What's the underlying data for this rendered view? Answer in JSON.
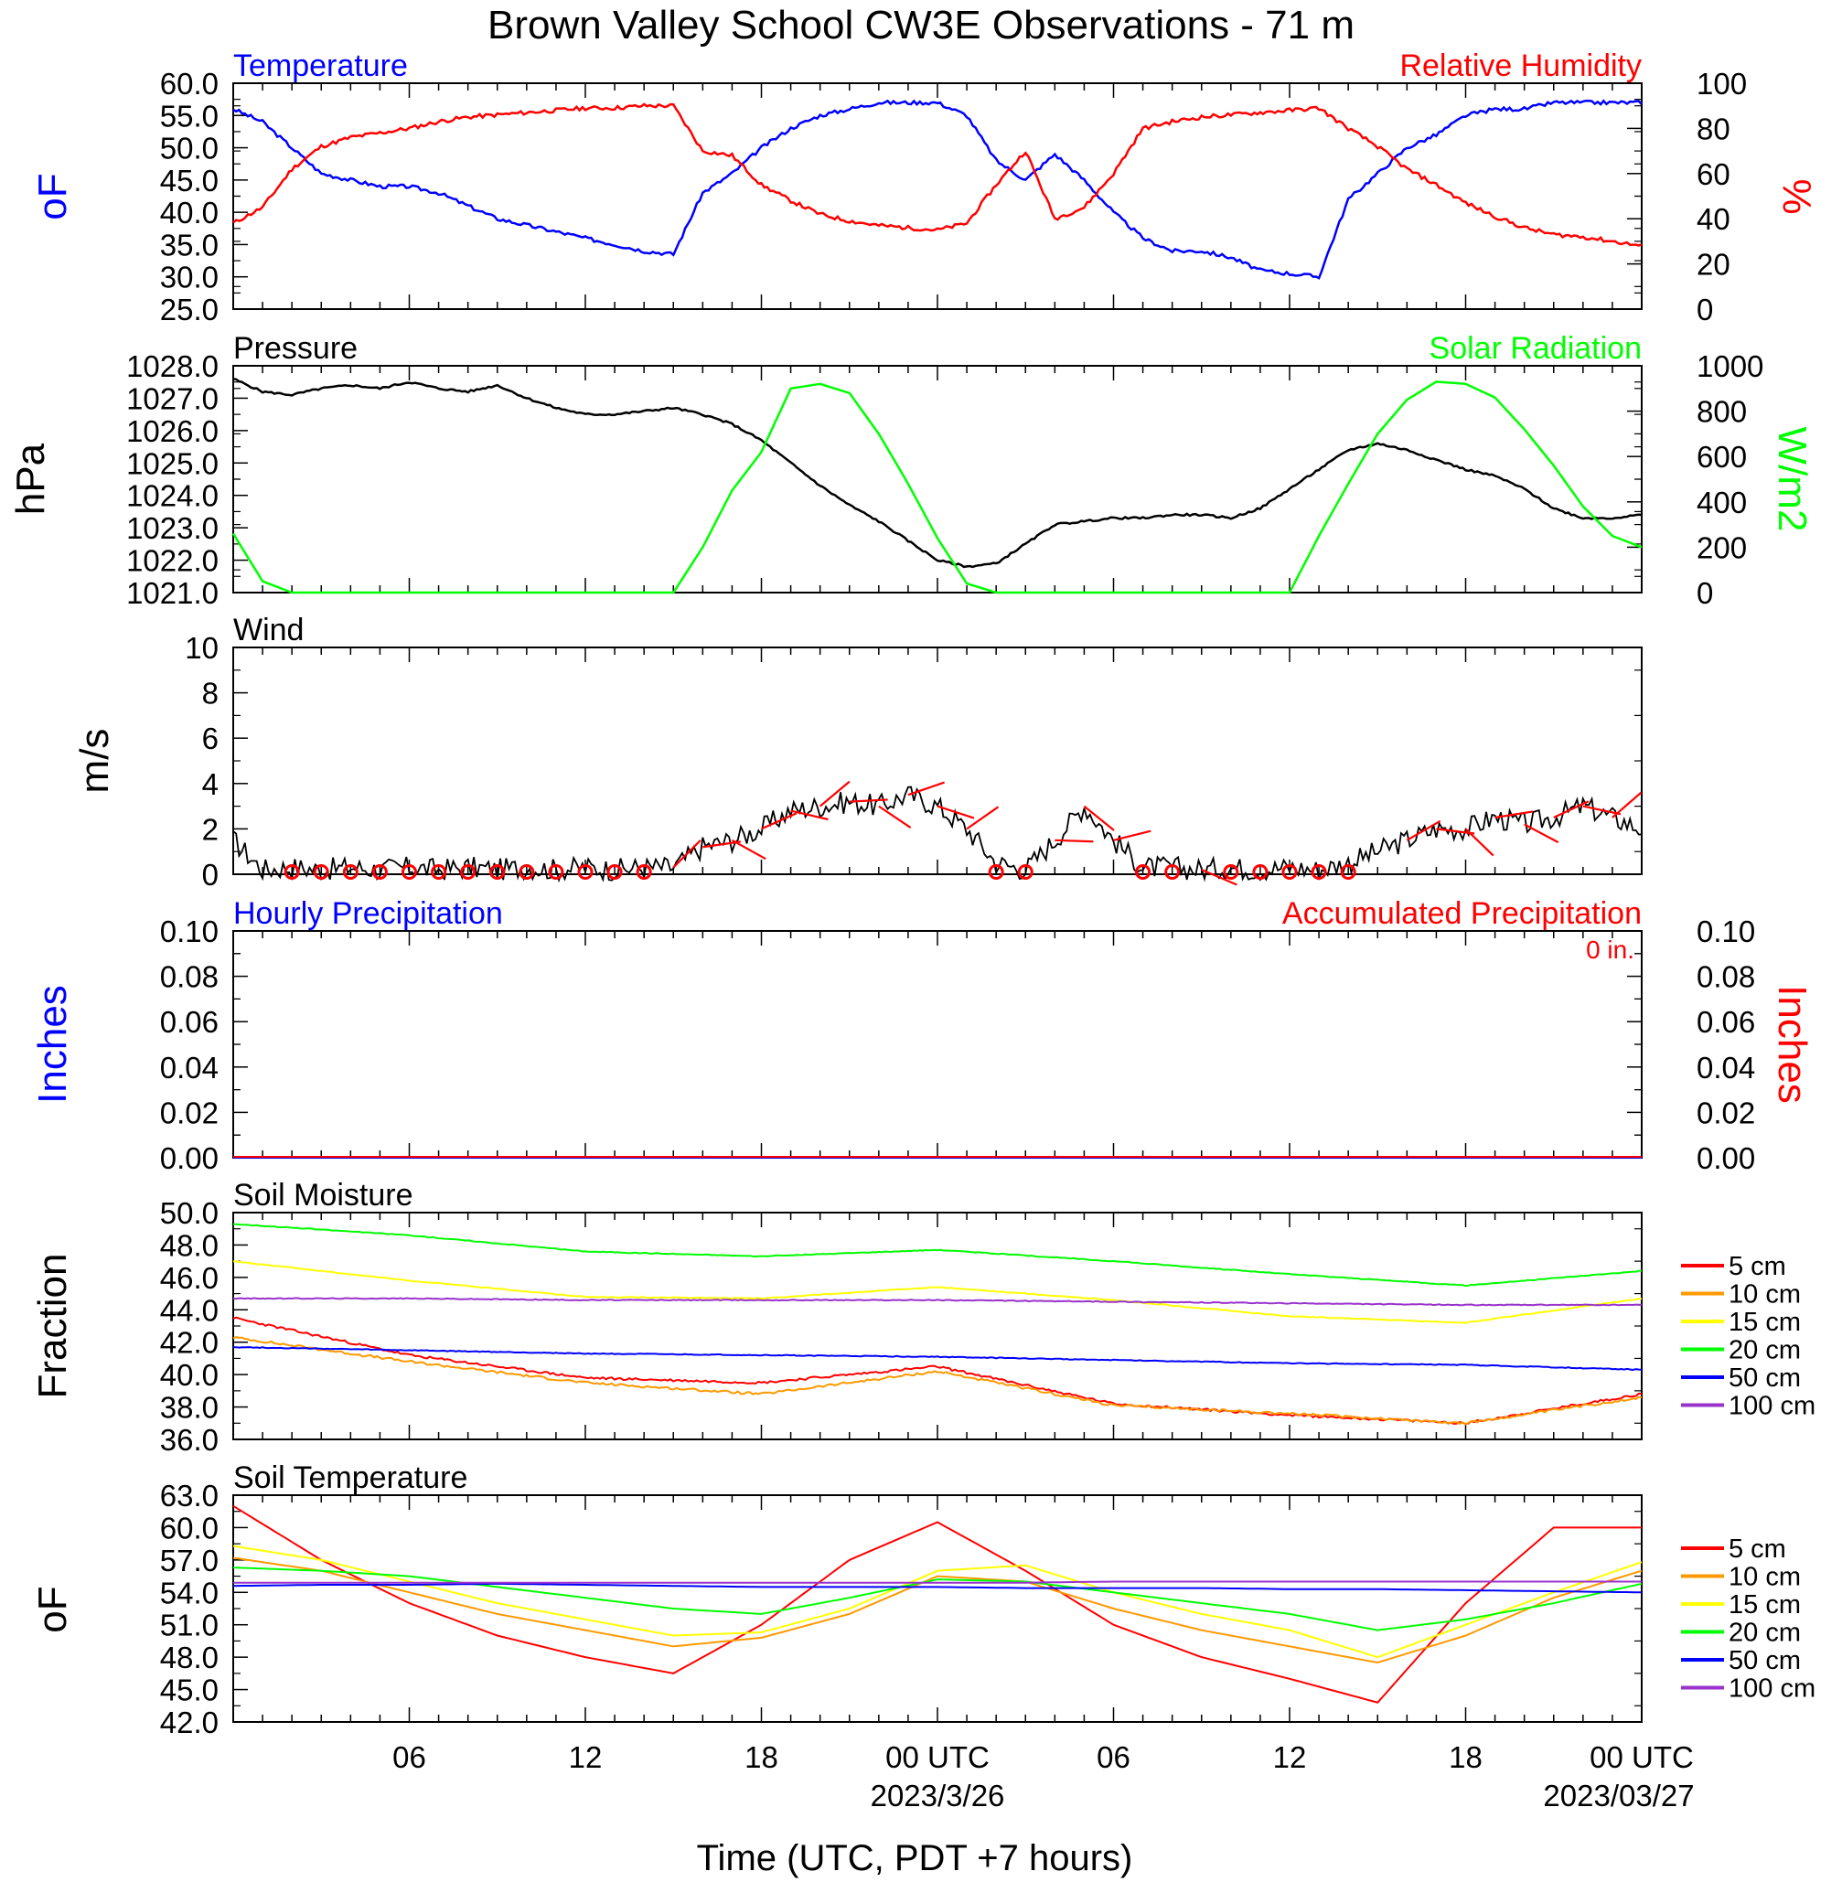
{
  "title": "Brown Valley School CW3E Observations - 71 m",
  "xaxis": {
    "label": "Time (UTC, PDT +7 hours)",
    "ticks": [
      "06",
      "12",
      "18",
      "00 UTC",
      "06",
      "12",
      "18",
      "00 UTC"
    ],
    "dates": [
      "2023/3/26",
      "2023/03/27"
    ]
  },
  "colors": {
    "blue": "#0000ff",
    "red": "#ff0000",
    "green": "#00ff00",
    "black": "#000000",
    "orange": "#ff9900",
    "yellow": "#ffff00",
    "purple": "#9933cc"
  },
  "chart_data": [
    {
      "type": "line",
      "panel": "temperature_rh",
      "title_left": "Temperature",
      "title_right": "Relative Humidity",
      "ylabel_left": "oF",
      "ylabel_right": "%",
      "ylim_left": [
        25,
        60
      ],
      "ylim_right": [
        0,
        100
      ],
      "yticks_left": [
        "60.0",
        "55.0",
        "50.0",
        "45.0",
        "40.0",
        "35.0",
        "30.0",
        "25.0"
      ],
      "yticks_right": [
        "100",
        "80",
        "60",
        "40",
        "20",
        "0"
      ],
      "x_hours": [
        0,
        1,
        2,
        3,
        4,
        5,
        6,
        7,
        8,
        9,
        10,
        11,
        12,
        13,
        14,
        15,
        16,
        17,
        18,
        19,
        20,
        21,
        22,
        23,
        24,
        25,
        26,
        27,
        28,
        29,
        30,
        31,
        32,
        33,
        34,
        35,
        36,
        37,
        38,
        39,
        40,
        41,
        42,
        43,
        44,
        45,
        46,
        47,
        48
      ],
      "series": [
        {
          "name": "Temperature",
          "axis": "left",
          "color": "#0000ff",
          "values": [
            56,
            54,
            50,
            46,
            45,
            44,
            44,
            43,
            41,
            39,
            38,
            37,
            36,
            35,
            34,
            33.5,
            43,
            46,
            50,
            53,
            55,
            56,
            57,
            57,
            57,
            55,
            48,
            45,
            49,
            45,
            40,
            36,
            34,
            34,
            33,
            31,
            30.5,
            30,
            42,
            46,
            50,
            52,
            55,
            56,
            56,
            57,
            57,
            57,
            57
          ]
        },
        {
          "name": "Relative Humidity",
          "axis": "right",
          "color": "#ff0000",
          "values": [
            38,
            45,
            62,
            72,
            76,
            78,
            80,
            83,
            85,
            86,
            87,
            88,
            89,
            89,
            90,
            90,
            70,
            68,
            55,
            48,
            42,
            39,
            37,
            36,
            35,
            38,
            55,
            70,
            40,
            45,
            60,
            80,
            83,
            85,
            86,
            87,
            88,
            89,
            80,
            72,
            62,
            55,
            47,
            41,
            36,
            33,
            32,
            30,
            28
          ]
        }
      ]
    },
    {
      "type": "line",
      "panel": "pressure_solar",
      "title_left": "Pressure",
      "title_right": "Solar Radiation",
      "ylabel_left": "hPa",
      "ylabel_right": "W/m2",
      "ylim_left": [
        1021,
        1028
      ],
      "ylim_right": [
        0,
        1000
      ],
      "yticks_left": [
        "1028.0",
        "1027.0",
        "1026.0",
        "1025.0",
        "1024.0",
        "1023.0",
        "1022.0",
        "1021.0"
      ],
      "yticks_right": [
        "1000",
        "800",
        "600",
        "400",
        "200",
        "0"
      ],
      "x_hours": [
        0,
        1,
        2,
        3,
        4,
        5,
        6,
        7,
        8,
        9,
        10,
        11,
        12,
        13,
        14,
        15,
        16,
        17,
        18,
        19,
        20,
        21,
        22,
        23,
        24,
        25,
        26,
        27,
        28,
        29,
        30,
        31,
        32,
        33,
        34,
        35,
        36,
        37,
        38,
        39,
        40,
        41,
        42,
        43,
        44,
        45,
        46,
        47,
        48
      ],
      "series": [
        {
          "name": "Pressure",
          "axis": "left",
          "color": "#000000",
          "values": [
            1027.6,
            1027.2,
            1027.1,
            1027.3,
            1027.4,
            1027.3,
            1027.5,
            1027.3,
            1027.2,
            1027.4,
            1027.0,
            1026.7,
            1026.5,
            1026.5,
            1026.6,
            1026.7,
            1026.5,
            1026.2,
            1025.7,
            1025.0,
            1024.3,
            1023.7,
            1023.2,
            1022.6,
            1022.0,
            1021.8,
            1021.9,
            1022.5,
            1023.1,
            1023.2,
            1023.3,
            1023.3,
            1023.4,
            1023.4,
            1023.3,
            1023.6,
            1024.2,
            1024.8,
            1025.4,
            1025.6,
            1025.4,
            1025.1,
            1024.8,
            1024.6,
            1024.2,
            1023.6,
            1023.3,
            1023.3,
            1023.4
          ]
        },
        {
          "name": "Solar Radiation",
          "axis": "right",
          "color": "#00ff00",
          "values": [
            260,
            50,
            0,
            0,
            0,
            0,
            0,
            0,
            0,
            0,
            0,
            0,
            0,
            0,
            0,
            0,
            200,
            450,
            620,
            900,
            920,
            880,
            700,
            480,
            240,
            40,
            0,
            0,
            0,
            0,
            0,
            0,
            0,
            0,
            0,
            0,
            0,
            250,
            480,
            700,
            850,
            930,
            920,
            860,
            720,
            560,
            380,
            250,
            200
          ]
        }
      ]
    },
    {
      "type": "line",
      "panel": "wind",
      "title": "Wind",
      "ylabel": "m/s",
      "ylim": [
        0,
        10
      ],
      "yticks": [
        "10",
        "8",
        "6",
        "4",
        "2",
        "0"
      ],
      "x_hours": [
        0,
        1,
        2,
        3,
        4,
        5,
        6,
        7,
        8,
        9,
        10,
        11,
        12,
        13,
        14,
        15,
        16,
        17,
        18,
        19,
        20,
        21,
        22,
        23,
        24,
        25,
        26,
        27,
        28,
        29,
        30,
        31,
        32,
        33,
        34,
        35,
        36,
        37,
        38,
        39,
        40,
        41,
        42,
        43,
        44,
        45,
        46,
        47,
        48
      ],
      "series": [
        {
          "name": "Wind Speed",
          "color": "#000000",
          "values": [
            1.5,
            0.2,
            0.3,
            0.2,
            0.3,
            0.2,
            0.3,
            0.2,
            0.3,
            0.2,
            0.3,
            0.2,
            0.3,
            0.2,
            0.3,
            0.3,
            1.2,
            1.5,
            2.0,
            2.8,
            3.0,
            3.2,
            3.0,
            3.5,
            3.0,
            2.0,
            0.5,
            0.2,
            1.5,
            3.0,
            1.5,
            0.3,
            0.3,
            0.2,
            0.3,
            0.2,
            0.3,
            0.2,
            0.5,
            1.0,
            1.5,
            2.0,
            2.0,
            2.5,
            2.2,
            2.5,
            3.0,
            2.5,
            2.0
          ]
        }
      ],
      "calm_circles_hours": [
        2,
        3,
        4,
        5,
        6,
        7,
        8,
        9,
        10,
        11,
        12,
        13,
        14,
        26,
        27,
        31,
        32,
        34,
        35,
        36,
        37,
        38
      ],
      "barb_hours": [
        15,
        16,
        17,
        18,
        19,
        20,
        21,
        22,
        23,
        24,
        25,
        28,
        29,
        30,
        33,
        40,
        41,
        42,
        43,
        44,
        45,
        46,
        47
      ]
    },
    {
      "type": "line",
      "panel": "precipitation",
      "title_left": "Hourly Precipitation",
      "title_right": "Accumulated Precipitation",
      "annotation": "0 in.",
      "ylabel_left": "Inches",
      "ylabel_right": "Inches",
      "ylim": [
        0,
        0.1
      ],
      "yticks": [
        "0.10",
        "0.08",
        "0.06",
        "0.04",
        "0.02",
        "0.00"
      ],
      "series": [
        {
          "name": "Hourly Precipitation",
          "color": "#0000ff",
          "values": [
            0,
            0
          ]
        },
        {
          "name": "Accumulated Precipitation",
          "color": "#ff0000",
          "values": [
            0,
            0
          ]
        }
      ]
    },
    {
      "type": "line",
      "panel": "soil_moisture",
      "title": "Soil Moisture",
      "ylabel": "Fraction",
      "ylim": [
        36,
        50
      ],
      "yticks": [
        "50.0",
        "48.0",
        "46.0",
        "44.0",
        "42.0",
        "40.0",
        "38.0",
        "36.0"
      ],
      "x_hours": [
        0,
        6,
        12,
        18,
        24,
        30,
        36,
        42,
        48
      ],
      "series": [
        {
          "name": "5 cm",
          "color": "#ff0000",
          "values": [
            43.5,
            41.2,
            39.8,
            39.5,
            40.5,
            38.2,
            37.5,
            37.0,
            38.8
          ]
        },
        {
          "name": "10 cm",
          "color": "#ff9900",
          "values": [
            42.3,
            40.8,
            39.5,
            38.8,
            40.2,
            38.1,
            37.6,
            37.0,
            38.6
          ]
        },
        {
          "name": "15 cm",
          "color": "#ffff00",
          "values": [
            47.0,
            45.8,
            44.8,
            44.7,
            45.4,
            44.6,
            43.6,
            43.2,
            44.7
          ]
        },
        {
          "name": "20 cm",
          "color": "#00ff00",
          "values": [
            49.3,
            48.6,
            47.6,
            47.3,
            47.7,
            47.0,
            46.2,
            45.5,
            46.4
          ]
        },
        {
          "name": "50 cm",
          "color": "#0000ff",
          "values": [
            41.7,
            41.5,
            41.3,
            41.2,
            41.1,
            40.9,
            40.7,
            40.6,
            40.3
          ]
        },
        {
          "name": "100 cm",
          "color": "#9933cc",
          "values": [
            44.7,
            44.7,
            44.6,
            44.6,
            44.6,
            44.5,
            44.4,
            44.3,
            44.3
          ]
        }
      ]
    },
    {
      "type": "line",
      "panel": "soil_temperature",
      "title": "Soil Temperature",
      "ylabel": "oF",
      "ylim": [
        42,
        63
      ],
      "yticks": [
        "63.0",
        "60.0",
        "57.0",
        "54.0",
        "51.0",
        "48.0",
        "45.0",
        "42.0"
      ],
      "x_hours": [
        0,
        3,
        6,
        9,
        12,
        15,
        18,
        21,
        24,
        27,
        30,
        33,
        36,
        39,
        42,
        45,
        48
      ],
      "series": [
        {
          "name": "5 cm",
          "color": "#ff0000",
          "values": [
            62,
            57,
            53,
            50,
            48,
            46.5,
            51,
            57,
            60.5,
            56,
            51,
            48,
            46,
            43.8,
            53,
            60,
            60
          ]
        },
        {
          "name": "10 cm",
          "color": "#ff9900",
          "values": [
            57.2,
            56,
            54,
            52,
            50.5,
            49,
            49.8,
            52,
            55.5,
            55,
            52.5,
            50.5,
            49,
            47.5,
            50,
            53.5,
            56
          ]
        },
        {
          "name": "15 cm",
          "color": "#ffff00",
          "values": [
            58.3,
            57,
            55,
            53,
            51.5,
            50,
            50.3,
            52.5,
            56,
            56.5,
            54,
            52,
            50.5,
            48,
            51,
            54,
            56.8
          ]
        },
        {
          "name": "20 cm",
          "color": "#00ff00",
          "values": [
            56.3,
            56,
            55.5,
            54.5,
            53.5,
            52.5,
            52,
            53.5,
            55.2,
            55,
            54,
            53,
            52,
            50.5,
            51.5,
            53,
            54.8
          ]
        },
        {
          "name": "50 cm",
          "color": "#0000ff",
          "values": [
            54.6,
            54.7,
            54.7,
            54.8,
            54.7,
            54.6,
            54.5,
            54.5,
            54.5,
            54.4,
            54.4,
            54.4,
            54.3,
            54.3,
            54.2,
            54.1,
            54.0
          ]
        },
        {
          "name": "100 cm",
          "color": "#9933cc",
          "values": [
            54.9,
            54.9,
            54.9,
            54.9,
            54.9,
            54.9,
            54.9,
            54.9,
            54.9,
            54.9,
            55.0,
            55.0,
            55.0,
            55.0,
            55.0,
            55.0,
            55.0
          ]
        }
      ]
    }
  ]
}
